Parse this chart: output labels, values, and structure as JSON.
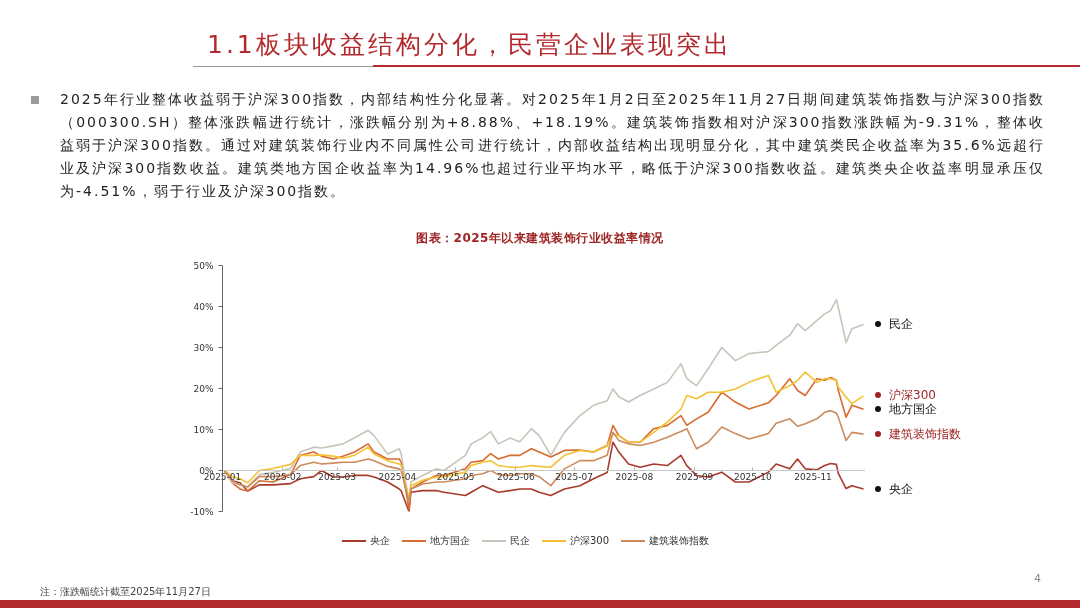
{
  "chart_data": {
    "type": "line",
    "title": "1.1板块收益结构分化，民营企业表现突出",
    "subtitle": "图表：2025年以来建筑装饰行业收益率情况",
    "annotations": [
      "2025年行业整体收益弱于沪深300指数，内部结构性分化显著。对2025年1月2日至2025年11月27日期间建筑装饰指数与沪深300指数（000300.SH）整体涨跌幅进行统计，涨跌幅分别为+8.88%、+18.19%。建筑装饰指数相对沪深300指数涨跌幅为-9.31%，整体收益弱于沪深300指数。通过对建筑装饰行业内不同属性公司进行统计，内部收益结构出现明显分化，其中建筑类民企收益率为35.6%远超行业及沪深300指数收益。建筑类地方国企收益率为14.96%也超过行业平均水平，略低于沪深300指数收益。建筑类央企收益率明显承压仅为-4.51%，弱于行业及沪深300指数。",
      "注：涨跌幅统计截至2025年11月27日",
      "4"
    ],
    "x": [
      "2025-01-02",
      "2025-01-06",
      "2025-01-10",
      "2025-01-14",
      "2025-01-20",
      "2025-01-27",
      "2025-02-05",
      "2025-02-10",
      "2025-02-17",
      "2025-02-21",
      "2025-02-27",
      "2025-03-04",
      "2025-03-10",
      "2025-03-17",
      "2025-03-20",
      "2025-03-27",
      "2025-04-02",
      "2025-04-03",
      "2025-04-07",
      "2025-04-08",
      "2025-04-14",
      "2025-04-21",
      "2025-04-25",
      "2025-05-06",
      "2025-05-09",
      "2025-05-15",
      "2025-05-19",
      "2025-05-23",
      "2025-05-29",
      "2025-06-03",
      "2025-06-09",
      "2025-06-13",
      "2025-06-19",
      "2025-06-26",
      "2025-07-04",
      "2025-07-11",
      "2025-07-18",
      "2025-07-21",
      "2025-07-24",
      "2025-07-29",
      "2025-08-04",
      "2025-08-11",
      "2025-08-18",
      "2025-08-25",
      "2025-08-28",
      "2025-09-02",
      "2025-09-08",
      "2025-09-15",
      "2025-09-22",
      "2025-09-29",
      "2025-10-09",
      "2025-10-13",
      "2025-10-20",
      "2025-10-24",
      "2025-10-28",
      "2025-11-03",
      "2025-11-07",
      "2025-11-10",
      "2025-11-13",
      "2025-11-14",
      "2025-11-18",
      "2025-11-21",
      "2025-11-27"
    ],
    "series": [
      {
        "name": "央企",
        "color": "#a83a2c",
        "values": [
          0,
          -2.5,
          -3,
          -5,
          -3.5,
          -3.5,
          -3.2,
          -2,
          -1.5,
          0,
          -1.6,
          -1.6,
          -1.2,
          -1.2,
          -1.6,
          -2.8,
          -4.5,
          -5,
          -10,
          -5.3,
          -4.9,
          -4.9,
          -5.3,
          -6.1,
          -5.3,
          -3.7,
          -4.5,
          -5.3,
          -4.9,
          -4.5,
          -4.5,
          -5.3,
          -6.1,
          -4.5,
          -3.7,
          -2,
          -0.5,
          6.9,
          4.5,
          1.6,
          0.8,
          1.6,
          1.2,
          3.7,
          1.2,
          -1.2,
          -1.6,
          -0.4,
          -2.8,
          -2.8,
          -0.4,
          1.6,
          0.4,
          2.8,
          0.4,
          0.2,
          1.2,
          1.7,
          1.5,
          -0.7,
          -4.4,
          -3.7,
          -4.51
        ]
      },
      {
        "name": "地方国企",
        "color": "#d86b2e",
        "values": [
          0,
          -3,
          -4.5,
          -5,
          -2.5,
          -2.8,
          -1,
          3.7,
          4.5,
          3.5,
          2.8,
          3.5,
          4.5,
          6.5,
          4.5,
          2.8,
          2.8,
          2,
          -9.5,
          -4.5,
          -2.8,
          -1.2,
          -1.2,
          0.4,
          2,
          2.4,
          4.1,
          2.8,
          3.7,
          3.7,
          5.3,
          4.5,
          3.3,
          4.9,
          5,
          4.5,
          6.1,
          11,
          8.5,
          6.9,
          6.9,
          10.2,
          11,
          13.4,
          11,
          12.6,
          14.2,
          19.1,
          16.7,
          15,
          16.5,
          18.3,
          22.4,
          19.5,
          18.3,
          22.4,
          22,
          22.7,
          22,
          19.5,
          13,
          15.9,
          14.96
        ]
      },
      {
        "name": "民企",
        "color": "#c9c4b9",
        "values": [
          0,
          -3,
          -3.5,
          -4,
          -1,
          -0.5,
          0.5,
          4.5,
          5.7,
          5.5,
          6,
          6.5,
          8,
          9.8,
          8.5,
          4,
          5.3,
          4,
          -7.7,
          -2.8,
          -1.2,
          0.4,
          0,
          3.7,
          6.5,
          8,
          9.5,
          6.5,
          7.9,
          7,
          10.2,
          8.5,
          3.7,
          9.3,
          13.4,
          15.9,
          17,
          19.9,
          18,
          16.7,
          18.3,
          19.9,
          21.5,
          26,
          22.4,
          20.7,
          24.8,
          30,
          26.8,
          28.5,
          29,
          30.5,
          33,
          35.8,
          34.1,
          36.6,
          38.2,
          39,
          41.7,
          39.8,
          31.2,
          34.6,
          35.6
        ]
      },
      {
        "name": "沪深300",
        "color": "#f2c232",
        "values": [
          0,
          -1.5,
          -2,
          -3,
          0,
          0.5,
          1.5,
          3.7,
          3.7,
          3.8,
          3.5,
          3,
          3.7,
          5.7,
          4,
          2.4,
          1.6,
          1.2,
          -6.9,
          -3.7,
          -2.4,
          -1.6,
          -1.6,
          -0.4,
          1.2,
          2,
          2.4,
          1.2,
          0.8,
          0.8,
          1.2,
          1,
          0.8,
          3.7,
          4.9,
          4.5,
          6,
          9,
          8.5,
          6.9,
          6.9,
          9.3,
          11.8,
          15,
          18.3,
          17.5,
          19.1,
          19.1,
          19.9,
          21.5,
          23.2,
          19.1,
          20.7,
          22,
          24,
          21.5,
          22.4,
          22.4,
          22,
          20.3,
          17.9,
          16.3,
          18.19
        ]
      },
      {
        "name": "建筑装饰指数",
        "color": "#cc8b5c",
        "values": [
          0,
          -2.5,
          -3.5,
          -4,
          -1.5,
          -1.5,
          -1,
          1.2,
          2,
          1.6,
          1.8,
          2,
          2,
          2.8,
          2.4,
          1,
          0.4,
          0,
          -7.7,
          -4.5,
          -3.3,
          -2.8,
          -2.8,
          -2,
          -1.2,
          -0.8,
          0,
          -1,
          -1.2,
          -0.8,
          -0.8,
          -1.5,
          -3.7,
          0.4,
          2.4,
          2.4,
          3.7,
          9.3,
          7.3,
          6.5,
          6.1,
          6.9,
          8.1,
          9.5,
          10.2,
          5.3,
          6.9,
          10.6,
          9,
          7.7,
          9,
          11.5,
          12.6,
          10.8,
          11.4,
          12.6,
          14.2,
          14.6,
          14,
          13,
          7.3,
          9.3,
          8.88
        ]
      }
    ],
    "xlim": [
      "2025-01-01",
      "2025-11-28"
    ],
    "xticks": [
      "2025-01",
      "2025-02",
      "2025-03",
      "2025-04",
      "2025-05",
      "2025-06",
      "2025-07",
      "2025-08",
      "2025-09",
      "2025-10",
      "2025-11"
    ],
    "ylim": [
      -10,
      50
    ],
    "yticks": [
      {
        "value": -10,
        "label": "-10%"
      },
      {
        "value": 0,
        "label": "0%"
      },
      {
        "value": 10,
        "label": "10%"
      },
      {
        "value": 20,
        "label": "20%"
      },
      {
        "value": 30,
        "label": "30%"
      },
      {
        "value": 40,
        "label": "40%"
      },
      {
        "value": 50,
        "label": "50%"
      }
    ],
    "legend": "bottom"
  }
}
